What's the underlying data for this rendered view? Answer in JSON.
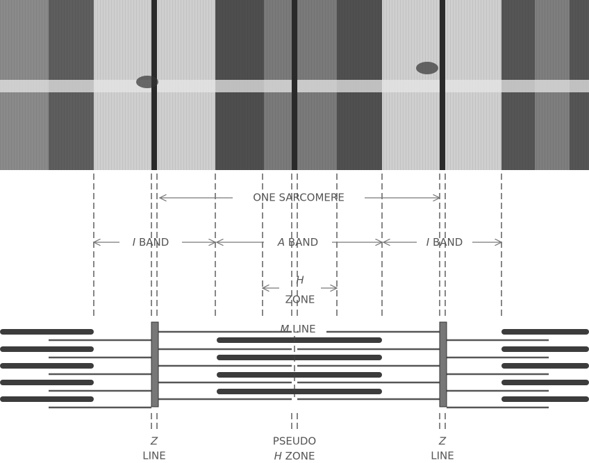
{
  "labels": {
    "sarcomere": "ONE SARCOMERE",
    "i_band_left": {
      "letter": "I",
      "word": "BAND"
    },
    "a_band": {
      "letter": "A",
      "word": "BAND"
    },
    "i_band_right": {
      "letter": "I",
      "word": "BAND"
    },
    "h_zone": {
      "letter": "H",
      "word": "ZONE"
    },
    "m_line": {
      "letter": "M",
      "word": "LINE"
    },
    "z_line_left": {
      "letter": "Z",
      "word": "LINE"
    },
    "pseudo_h_zone": {
      "top": "PSEUDO",
      "letter": "H",
      "word": "ZONE"
    },
    "z_line_right": {
      "letter": "Z",
      "word": "LINE"
    }
  }
}
